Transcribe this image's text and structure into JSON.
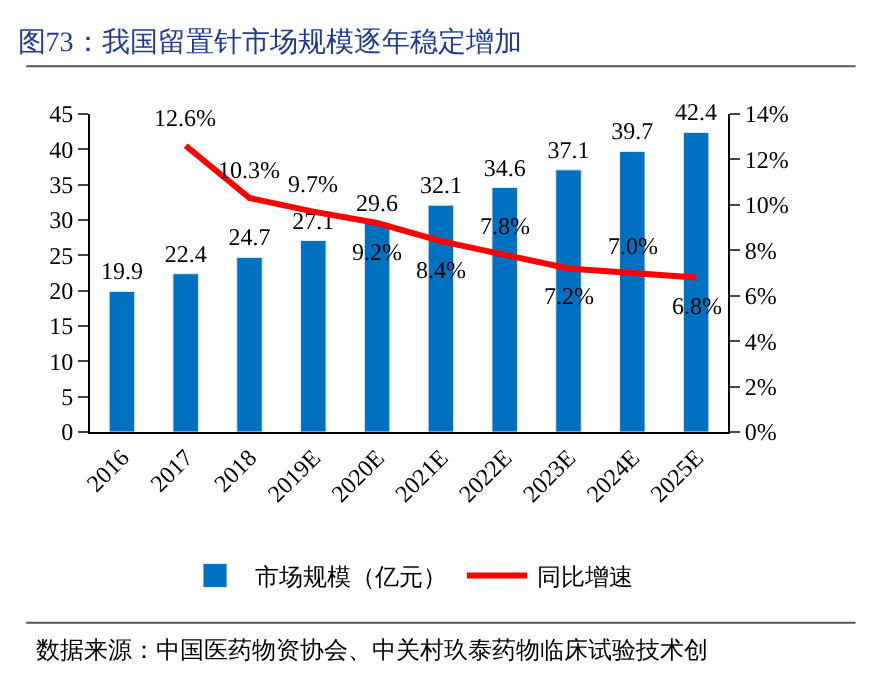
{
  "chart_data": {
    "type": "bar",
    "title": "图73：我国留置针市场规模逐年稳定增加",
    "categories": [
      "2016",
      "2017",
      "2018",
      "2019E",
      "2020E",
      "2021E",
      "2022E",
      "2023E",
      "2024E",
      "2025E"
    ],
    "series": [
      {
        "name": "市场规模（亿元）",
        "color": "#0070c0",
        "values": [
          19.9,
          22.4,
          24.7,
          27.1,
          29.6,
          32.1,
          34.6,
          37.1,
          39.7,
          42.4
        ],
        "value_labels": [
          "19.9",
          "22.4",
          "24.7",
          "27.1",
          "29.6",
          "32.1",
          "34.6",
          "37.1",
          "39.7",
          "42.4"
        ]
      },
      {
        "name": "同比增速",
        "type": "line",
        "axis": "y2",
        "color": "#ff0000",
        "values": [
          null,
          12.6,
          10.3,
          9.7,
          9.2,
          8.4,
          7.8,
          7.2,
          7.0,
          6.8
        ],
        "value_labels": [
          null,
          "12.6%",
          "10.3%",
          "9.7%",
          "9.2%",
          "8.4%",
          "7.8%",
          "7.2%",
          "7.0%",
          "6.8%"
        ]
      }
    ],
    "ylim": [
      0,
      45
    ],
    "yticks": [
      0,
      5,
      10,
      15,
      20,
      25,
      30,
      35,
      40,
      45
    ],
    "y2lim": [
      0,
      14
    ],
    "y2ticks": [
      {
        "value": 0,
        "label": "0%"
      },
      {
        "value": 2,
        "label": "2%"
      },
      {
        "value": 4,
        "label": "4%"
      },
      {
        "value": 6,
        "label": "6%"
      },
      {
        "value": 8,
        "label": "8%"
      },
      {
        "value": 10,
        "label": "10%"
      },
      {
        "value": 12,
        "label": "12%"
      },
      {
        "value": 14,
        "label": "14%"
      }
    ],
    "legend": "bottom",
    "marker": "none",
    "line_style": "solid",
    "annotations": [
      "数据来源：中国医药物资协会、中关村玖泰药物临床试验技术创"
    ]
  }
}
